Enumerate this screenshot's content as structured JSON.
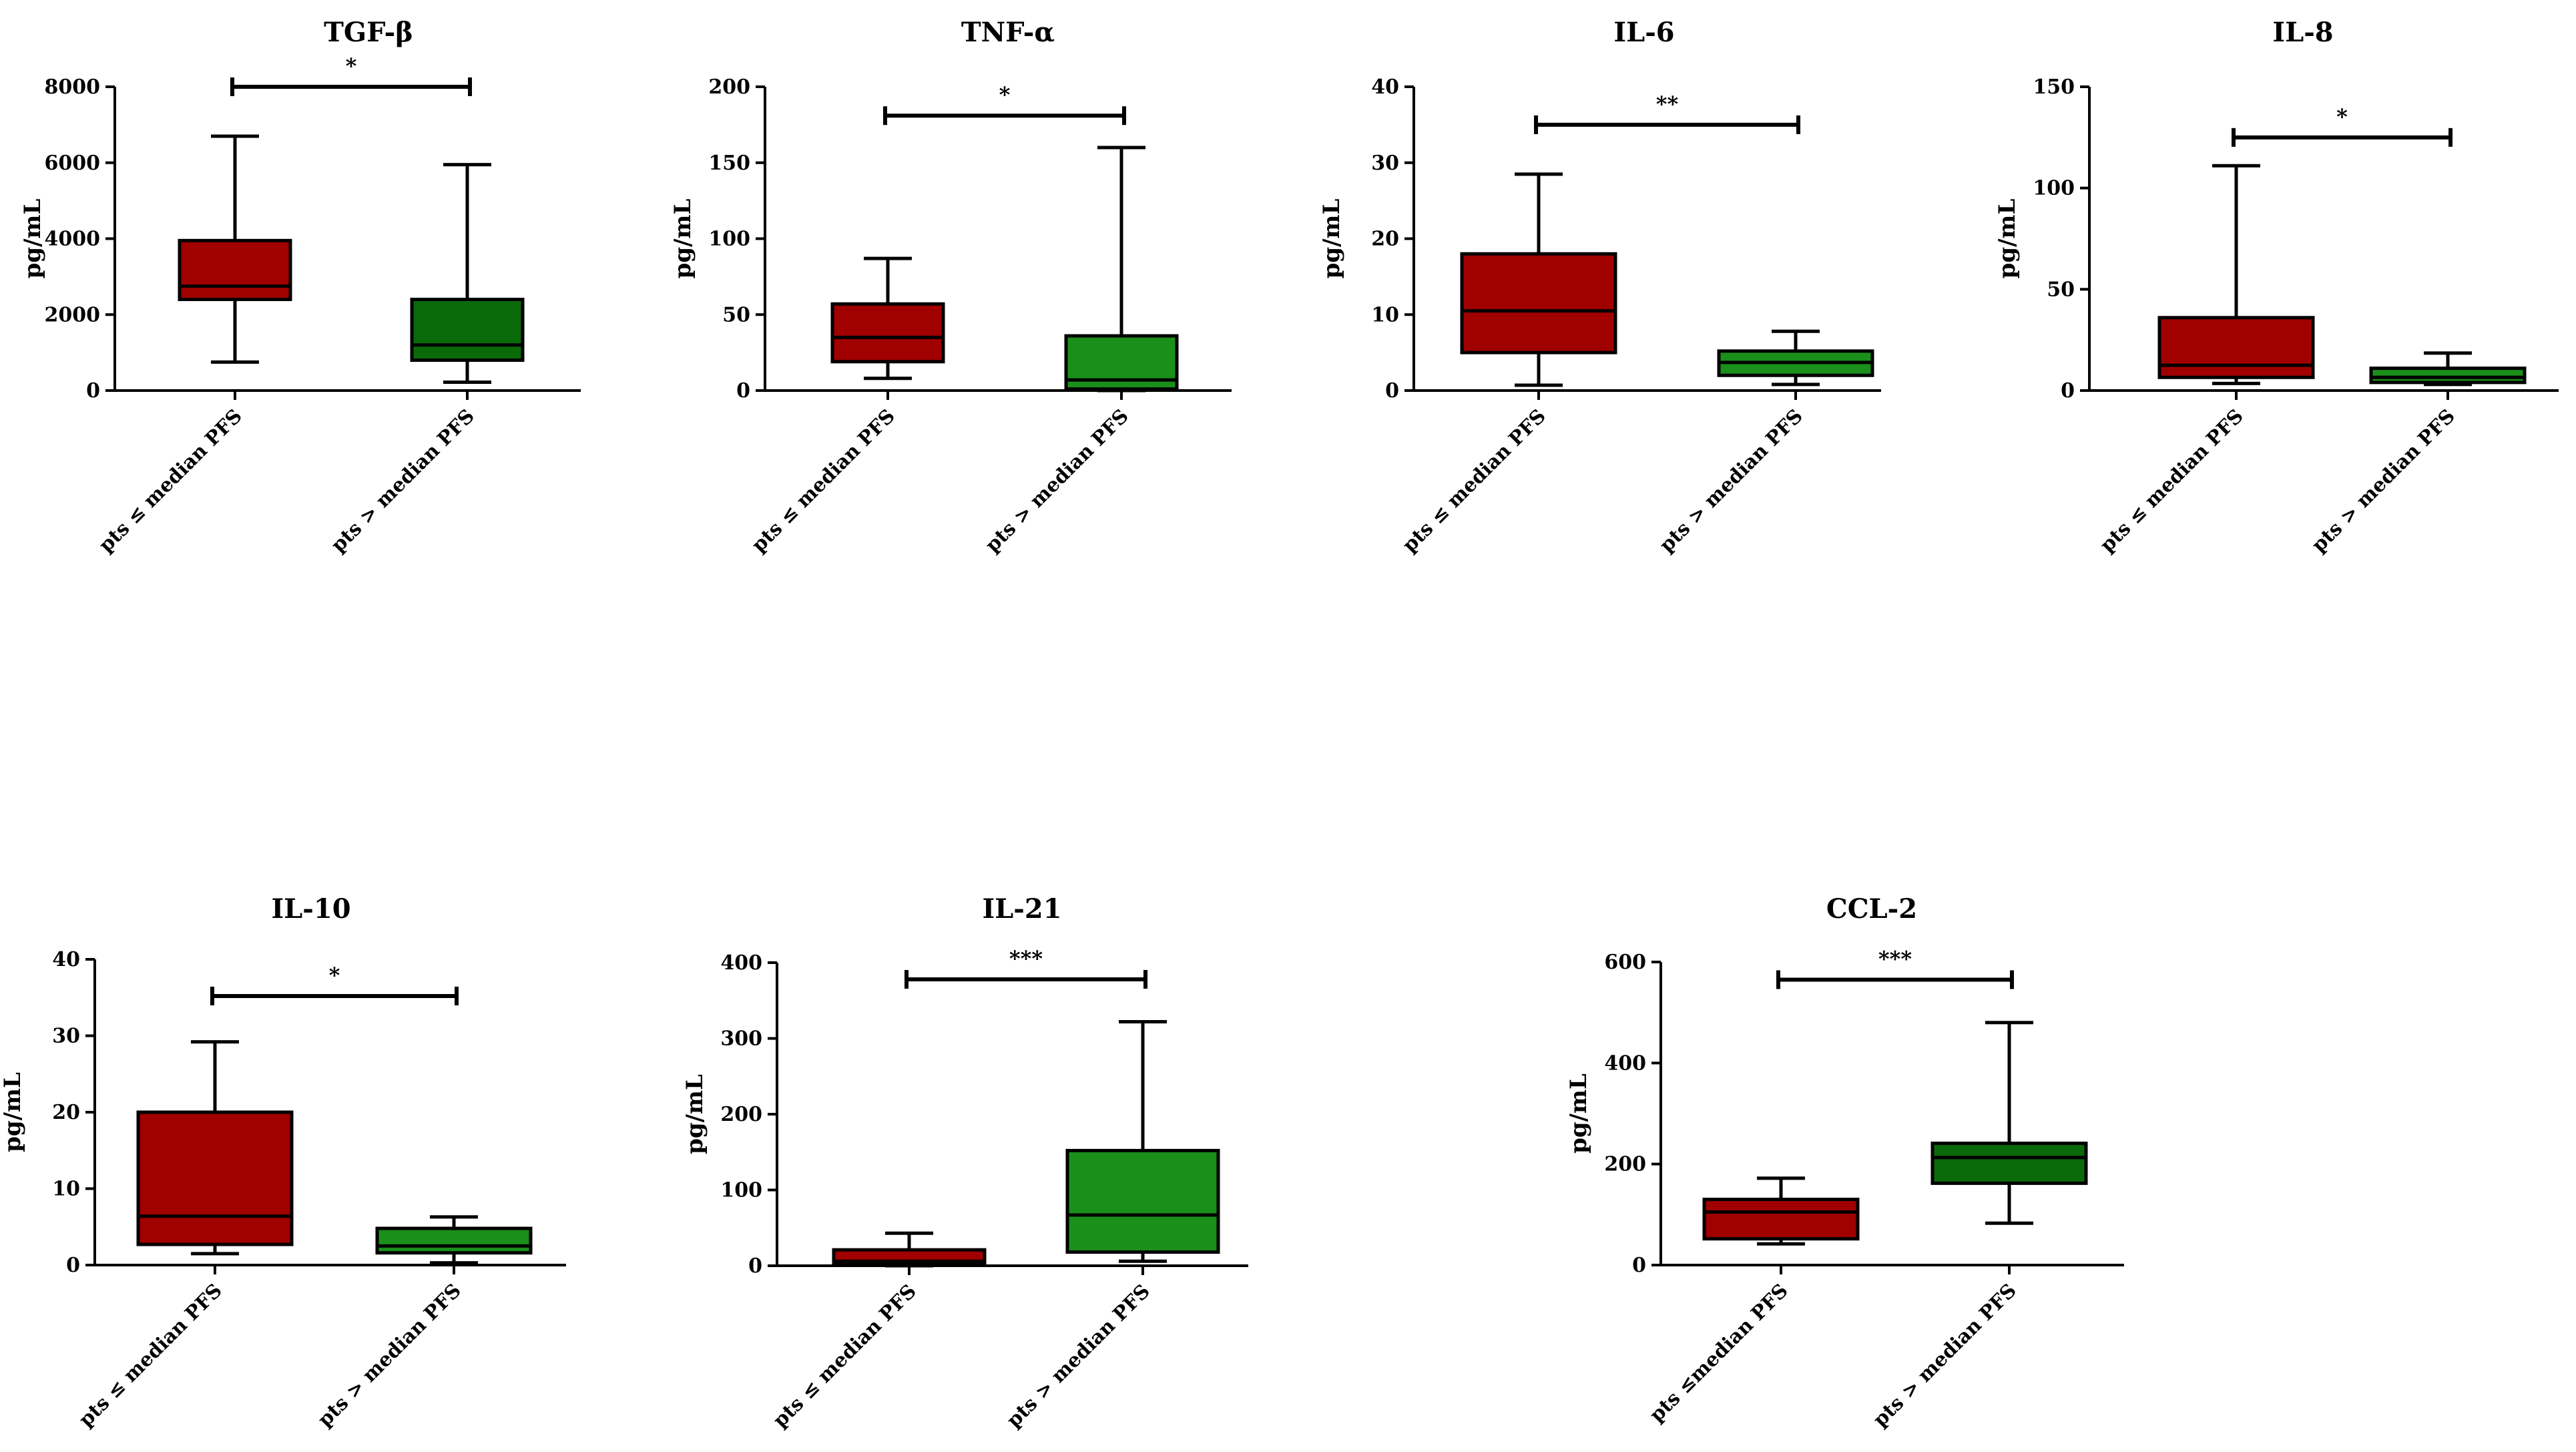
{
  "figure": {
    "description_free": true,
    "colors": {
      "lower_group": "#a00000",
      "higher_group_dark": "#0a6a0a",
      "higher_group_light": "#1a8f1a",
      "line": "#000000"
    }
  },
  "chart_data": [
    {
      "type": "box",
      "title": "TGF-β",
      "ylabel": "pg/mL",
      "ylim": [
        0,
        8000
      ],
      "yticks": [
        0,
        2000,
        4000,
        6000,
        8000
      ],
      "categories": [
        "pts ≤ median PFS",
        "pts > median PFS"
      ],
      "boxes": [
        {
          "min": 750,
          "q1": 2400,
          "median": 2750,
          "q3": 3950,
          "max": 6700,
          "color": "#a00000"
        },
        {
          "min": 220,
          "q1": 800,
          "median": 1200,
          "q3": 2400,
          "max": 5950,
          "color": "#0a6a0a"
        }
      ],
      "significance": {
        "label": "*",
        "level": 8000
      }
    },
    {
      "type": "box",
      "title": "TNF-α",
      "ylabel": "pg/mL",
      "ylim": [
        0,
        200
      ],
      "yticks": [
        0,
        50,
        100,
        150,
        200
      ],
      "categories": [
        "pts ≤ median PFS",
        "pts > median PFS"
      ],
      "boxes": [
        {
          "min": 8,
          "q1": 19,
          "median": 35,
          "q3": 57,
          "max": 87,
          "color": "#a00000"
        },
        {
          "min": 0,
          "q1": 1,
          "median": 7,
          "q3": 36,
          "max": 160,
          "color": "#1a8f1a"
        }
      ],
      "significance": {
        "label": "*",
        "level": 181
      }
    },
    {
      "type": "box",
      "title": "IL-6",
      "ylabel": "pg/mL",
      "ylim": [
        0,
        40
      ],
      "yticks": [
        0,
        10,
        20,
        30,
        40
      ],
      "categories": [
        "pts ≤ median PFS",
        "pts > median PFS"
      ],
      "boxes": [
        {
          "min": 0.7,
          "q1": 5,
          "median": 10.5,
          "q3": 18,
          "max": 28.5,
          "color": "#a00000"
        },
        {
          "min": 0.8,
          "q1": 2,
          "median": 3.7,
          "q3": 5.2,
          "max": 7.8,
          "color": "#1a8f1a"
        }
      ],
      "significance": {
        "label": "**",
        "level": 35
      }
    },
    {
      "type": "box",
      "title": "IL-8",
      "ylabel": "pg/mL",
      "ylim": [
        0,
        150
      ],
      "yticks": [
        0,
        50,
        100,
        150
      ],
      "categories": [
        "pts ≤ median PFS",
        "pts > median PFS"
      ],
      "boxes": [
        {
          "min": 3.5,
          "q1": 6.5,
          "median": 12.5,
          "q3": 36,
          "max": 111,
          "color": "#a00000"
        },
        {
          "min": 3,
          "q1": 4,
          "median": 6.5,
          "q3": 11,
          "max": 18.5,
          "color": "#1a8f1a"
        }
      ],
      "significance": {
        "label": "*",
        "level": 125
      }
    },
    {
      "type": "box",
      "title": "IL-10",
      "ylabel": "pg/mL",
      "ylim": [
        0,
        40
      ],
      "yticks": [
        0,
        10,
        20,
        30,
        40
      ],
      "categories": [
        "pts ≤ median PFS",
        "pts > median PFS"
      ],
      "boxes": [
        {
          "min": 1.5,
          "q1": 2.7,
          "median": 6.4,
          "q3": 20,
          "max": 29.2,
          "color": "#a00000"
        },
        {
          "min": 0.3,
          "q1": 1.6,
          "median": 2.5,
          "q3": 4.8,
          "max": 6.3,
          "color": "#1a8f1a"
        }
      ],
      "significance": {
        "label": "*",
        "level": 35.2
      }
    },
    {
      "type": "box",
      "title": "IL-21",
      "ylabel": "pg/mL",
      "ylim": [
        0,
        400
      ],
      "yticks": [
        0,
        100,
        200,
        300,
        400
      ],
      "categories": [
        "pts ≤ median PFS",
        "pts > median PFS"
      ],
      "boxes": [
        {
          "min": 0,
          "q1": 2,
          "median": 6,
          "q3": 21,
          "max": 43,
          "color": "#a00000"
        },
        {
          "min": 6,
          "q1": 18,
          "median": 67,
          "q3": 152,
          "max": 322,
          "color": "#1a8f1a"
        }
      ],
      "significance": {
        "label": "***",
        "level": 378
      }
    },
    {
      "type": "box",
      "title": "CCL-2",
      "ylabel": "pg/mL",
      "ylim": [
        0,
        600
      ],
      "yticks": [
        0,
        200,
        400,
        600
      ],
      "categories": [
        "pts ≤median PFS",
        "pts > median PFS"
      ],
      "boxes": [
        {
          "min": 42,
          "q1": 52,
          "median": 105,
          "q3": 130,
          "max": 172,
          "color": "#a00000"
        },
        {
          "min": 83,
          "q1": 162,
          "median": 213,
          "q3": 241,
          "max": 480,
          "color": "#0a6a0a"
        }
      ],
      "significance": {
        "label": "***",
        "level": 565
      }
    }
  ]
}
